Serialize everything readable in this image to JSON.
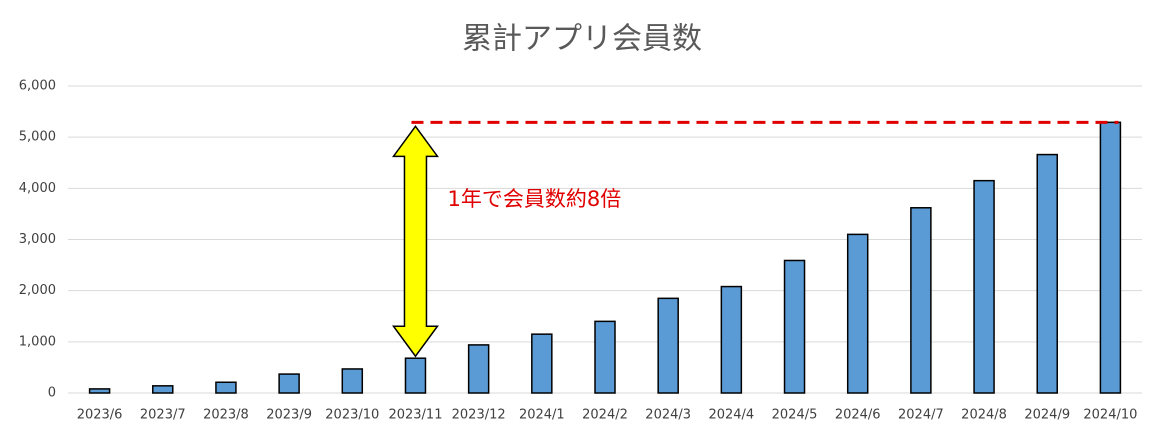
{
  "chart_data": {
    "type": "bar",
    "title": "累計アプリ会員数",
    "categories": [
      "2023/6",
      "2023/7",
      "2023/8",
      "2023/9",
      "2023/10",
      "2023/11",
      "2023/12",
      "2024/1",
      "2024/2",
      "2024/3",
      "2024/4",
      "2024/5",
      "2024/6",
      "2024/7",
      "2024/8",
      "2024/9",
      "2024/10"
    ],
    "values": [
      80,
      140,
      210,
      370,
      470,
      680,
      940,
      1150,
      1400,
      1850,
      2080,
      2590,
      3100,
      3620,
      4150,
      4660,
      5290
    ],
    "color": "#5b9bd5",
    "ylim": [
      0,
      6000
    ],
    "yticks": [
      0,
      {
        "value": 1000,
        "label": "1,000"
      },
      {
        "value": 2000,
        "label": "2,000"
      },
      {
        "value": 3000,
        "label": "3,000"
      },
      {
        "value": 4000,
        "label": "4,000"
      },
      {
        "value": 5000,
        "label": "5,000"
      },
      {
        "value": 6000,
        "label": "6,000"
      }
    ],
    "grid": true,
    "annotation": "1年で会員数約8倍"
  }
}
